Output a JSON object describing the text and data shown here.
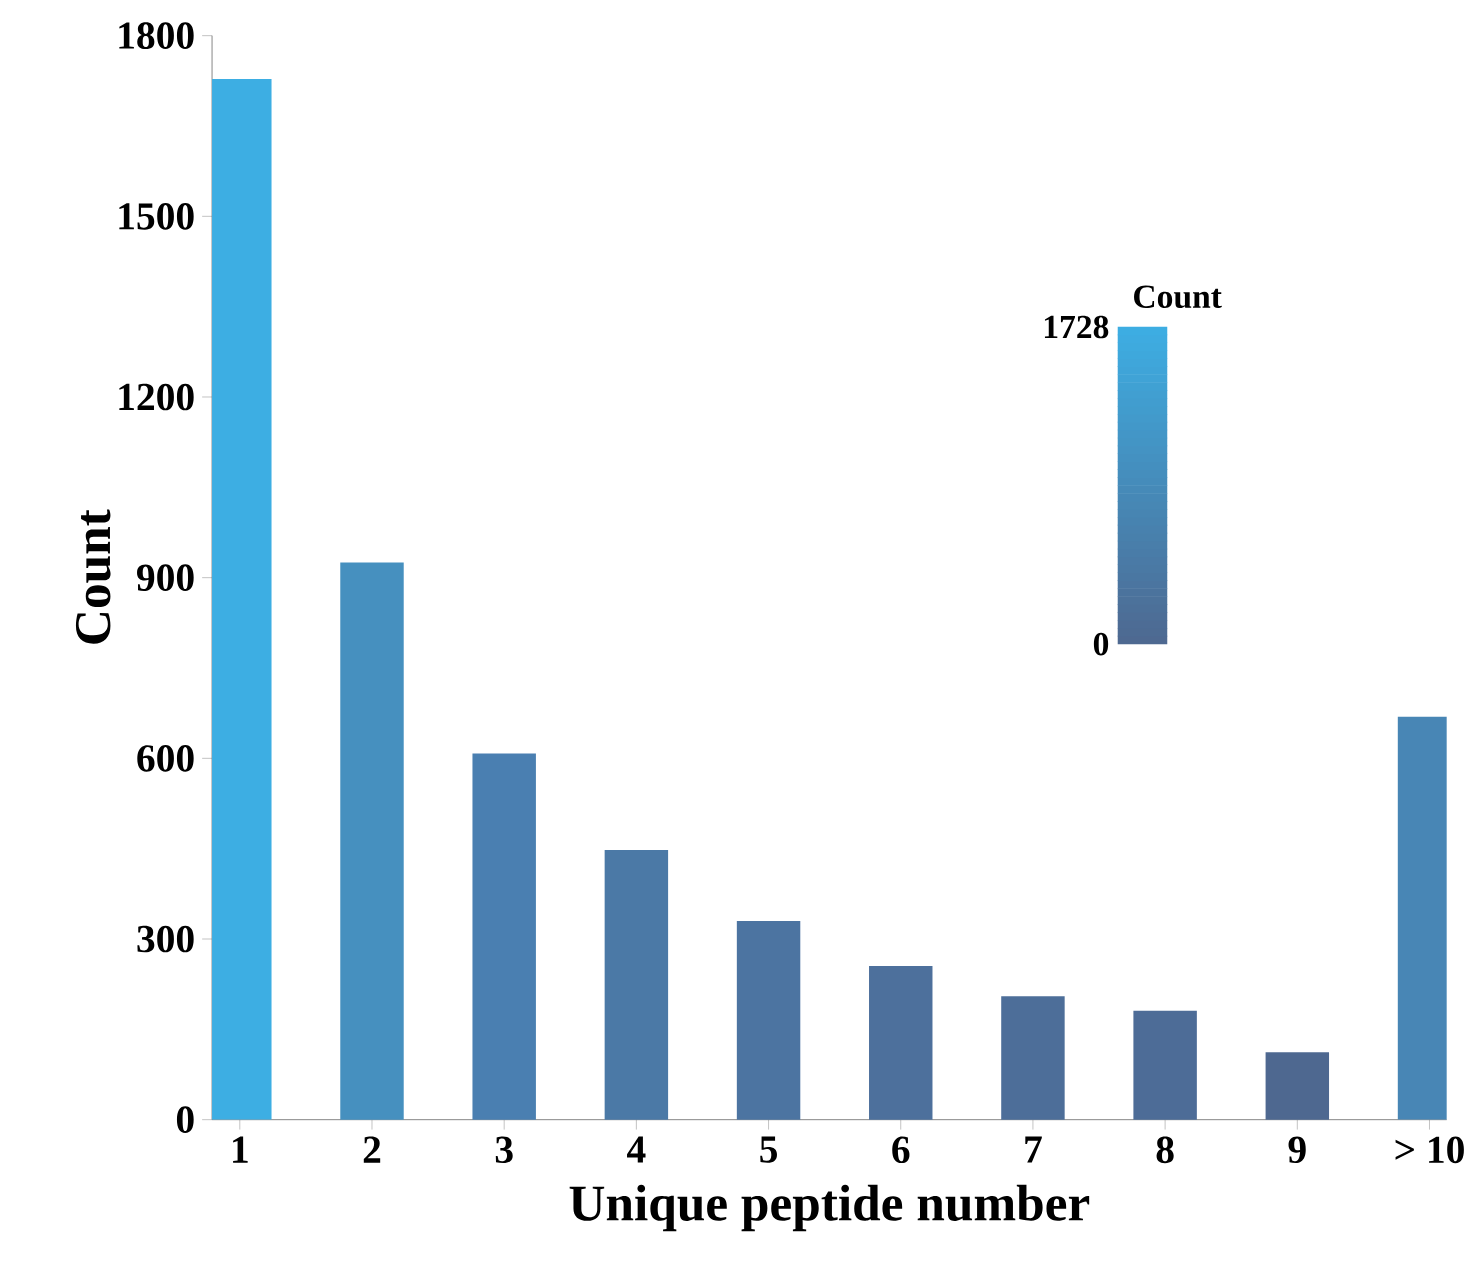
{
  "chart_data": {
    "type": "bar",
    "xlabel": "Unique peptide number",
    "ylabel": "Count",
    "categories": [
      "1",
      "2",
      "3",
      "4",
      "5",
      "6",
      "7",
      "8",
      "9",
      "> 10"
    ],
    "values": [
      1728,
      925,
      608,
      448,
      330,
      255,
      205,
      181,
      112,
      669
    ],
    "colors": [
      "#3daee3",
      "#4690bf",
      "#4a7fb1",
      "#4b79a6",
      "#4c74a1",
      "#4d709c",
      "#4d6e99",
      "#4d6c97",
      "#4e6890",
      "#4886b5"
    ],
    "ylim": [
      0,
      1800
    ],
    "yticks": [
      0,
      300,
      600,
      900,
      1200,
      1500,
      1800
    ],
    "clabel": "Count",
    "annotations": [
      "1728",
      "0"
    ]
  }
}
